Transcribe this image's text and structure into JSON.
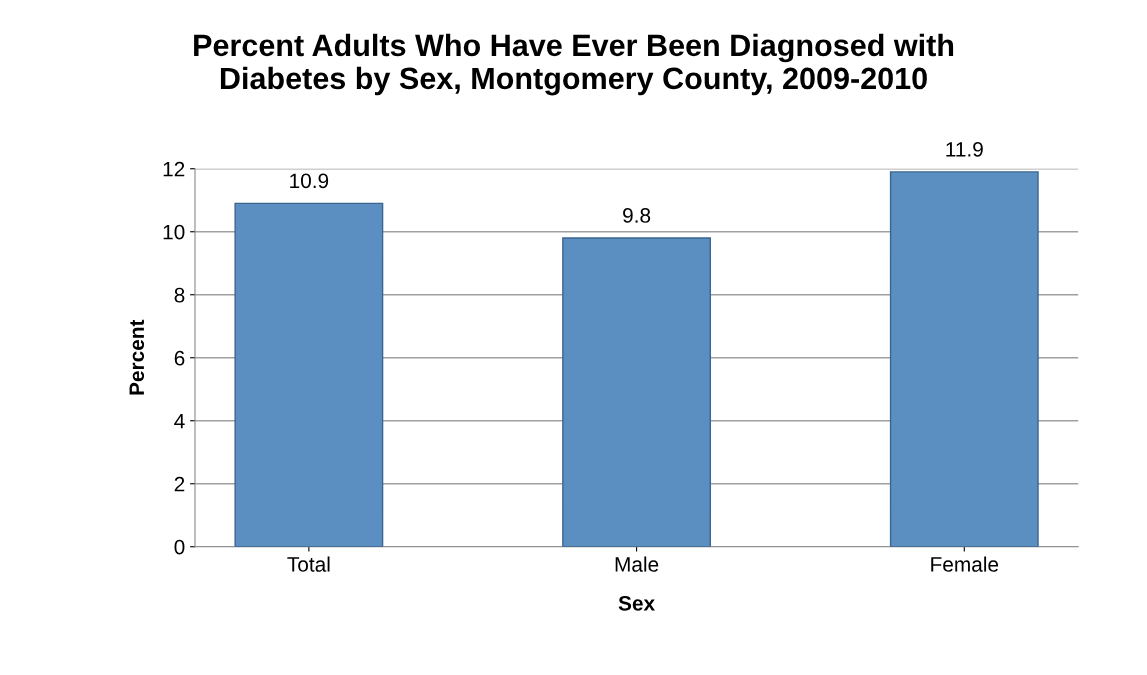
{
  "chart_data": {
    "type": "bar",
    "title": "Percent Adults Who Have Ever Been Diagnosed with\nDiabetes by Sex, Montgomery County, 2009-2010",
    "xlabel": "Sex",
    "ylabel": "Percent",
    "categories": [
      "Total",
      "Male",
      "Female"
    ],
    "values": [
      10.9,
      9.8,
      11.9
    ],
    "color": "#5b8ec1",
    "ylim": [
      0,
      12
    ],
    "yticks": [
      0,
      2,
      4,
      6,
      8,
      10,
      12
    ],
    "grid": "y",
    "data_labels": true,
    "legend": false
  }
}
